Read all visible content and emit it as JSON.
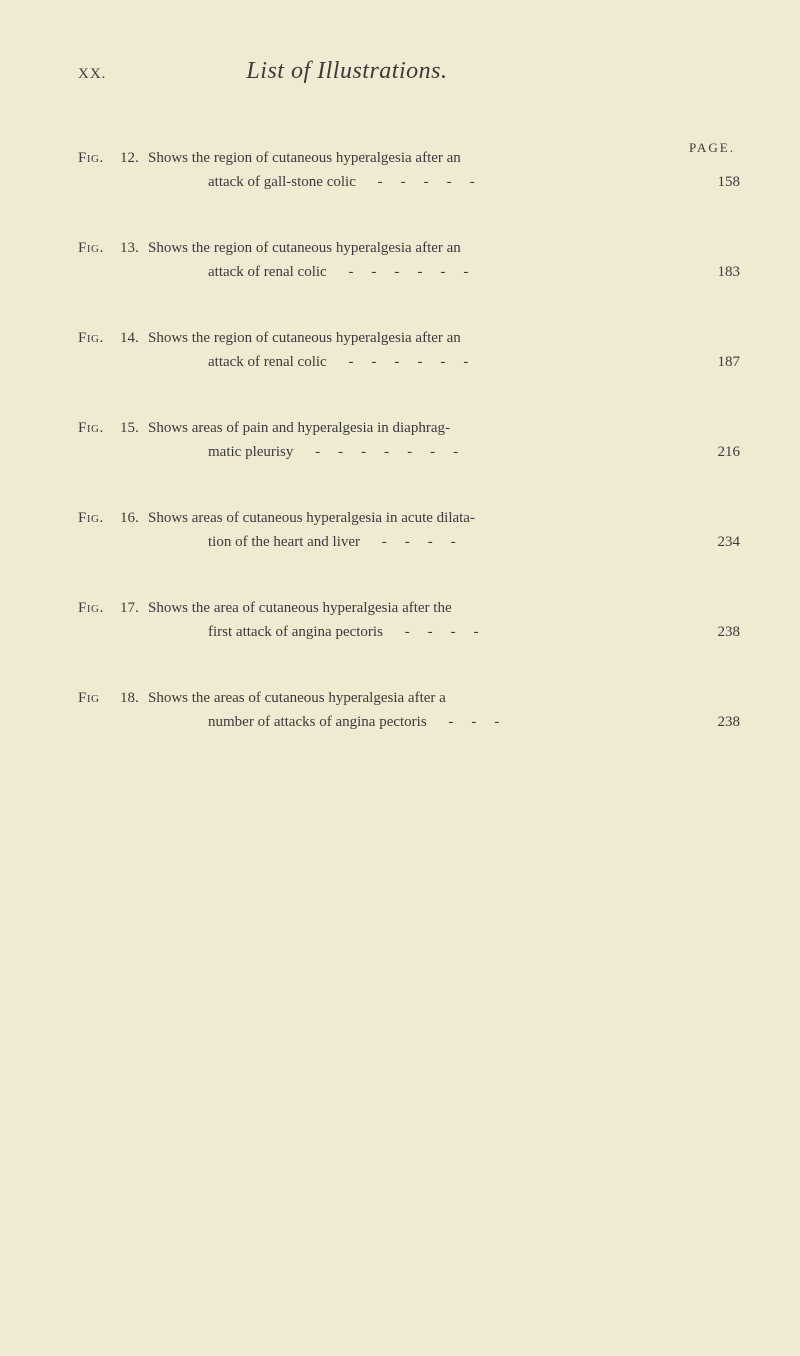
{
  "header": {
    "pageNum": "XX.",
    "title": "List of Illustrations."
  },
  "pageLabel": "PAGE.",
  "entries": [
    {
      "figLabel": "Fig.",
      "figNum": "12.",
      "line1": "Shows the region of cutaneous hyperalgesia after an",
      "line2": "attack of gall-stone colic",
      "dashes": "-----",
      "pageRef": "158"
    },
    {
      "figLabel": "Fig.",
      "figNum": "13.",
      "line1": "Shows the region of cutaneous hyperalgesia after an",
      "line2": "attack of renal colic",
      "dashes": "------",
      "pageRef": "183"
    },
    {
      "figLabel": "Fig.",
      "figNum": "14.",
      "line1": "Shows the region of cutaneous hyperalgesia after an",
      "line2": "attack of renal colic",
      "dashes": "------",
      "pageRef": "187"
    },
    {
      "figLabel": "Fig.",
      "figNum": "15.",
      "line1": "Shows areas of pain and hyperalgesia in diaphrag-",
      "line2": "matic pleurisy",
      "dashes": "-------",
      "pageRef": "216"
    },
    {
      "figLabel": "Fig.",
      "figNum": "16.",
      "line1": "Shows areas of cutaneous hyperalgesia in acute dilata-",
      "line2": "tion of the heart and liver",
      "dashes": "----",
      "pageRef": "234"
    },
    {
      "figLabel": "Fig.",
      "figNum": "17.",
      "line1": "Shows the area of cutaneous hyperalgesia after the",
      "line2": "first attack of angina pectoris",
      "dashes": "----",
      "pageRef": "238"
    },
    {
      "figLabel": "Fig",
      "figNum": "18.",
      "line1": "Shows the areas of cutaneous hyperalgesia after a",
      "line2": "number of attacks of angina pectoris",
      "dashes": "---",
      "pageRef": "238"
    }
  ]
}
